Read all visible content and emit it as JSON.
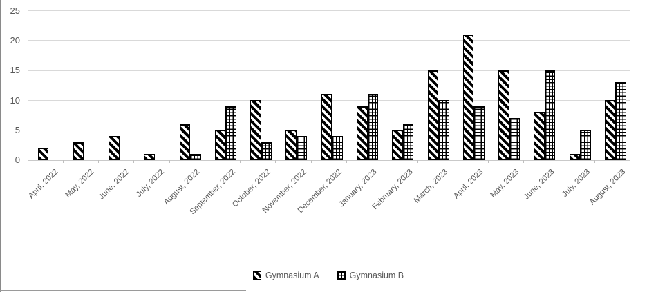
{
  "chart_data": {
    "type": "bar",
    "title": "",
    "xlabel": "",
    "ylabel": "",
    "categories": [
      "April, 2022",
      "May, 2022",
      "June, 2022",
      "July, 2022",
      "August, 2022",
      "September, 2022",
      "October, 2022",
      "November, 2022",
      "December, 2022",
      "January, 2023",
      "February, 2023",
      "March, 2023",
      "April, 2023",
      "May, 2023",
      "June, 2023",
      "July, 2023",
      "August, 2023"
    ],
    "series": [
      {
        "name": "Gymnasium A",
        "pattern": "diagonal-stripes",
        "values": [
          2,
          3,
          4,
          1,
          6,
          5,
          10,
          5,
          11,
          9,
          5,
          15,
          21,
          15,
          8,
          1,
          10
        ]
      },
      {
        "name": "Gymnasium B",
        "pattern": "grid",
        "values": [
          0,
          0,
          0,
          0,
          1,
          9,
          3,
          4,
          4,
          11,
          6,
          10,
          9,
          7,
          15,
          5,
          13
        ]
      }
    ],
    "ylim": [
      0,
      25
    ],
    "yticks": [
      0,
      5,
      10,
      15,
      20,
      25
    ],
    "grid": true,
    "legend_position": "bottom"
  },
  "colors": {
    "bar_fill": "#000000",
    "bar_background": "#ffffff",
    "axis_text": "#595959",
    "legend_text": "#595959",
    "gridline": "#d9d9d9",
    "axis_line": "#c9c9c9",
    "window_border": "#8a8a8a"
  }
}
